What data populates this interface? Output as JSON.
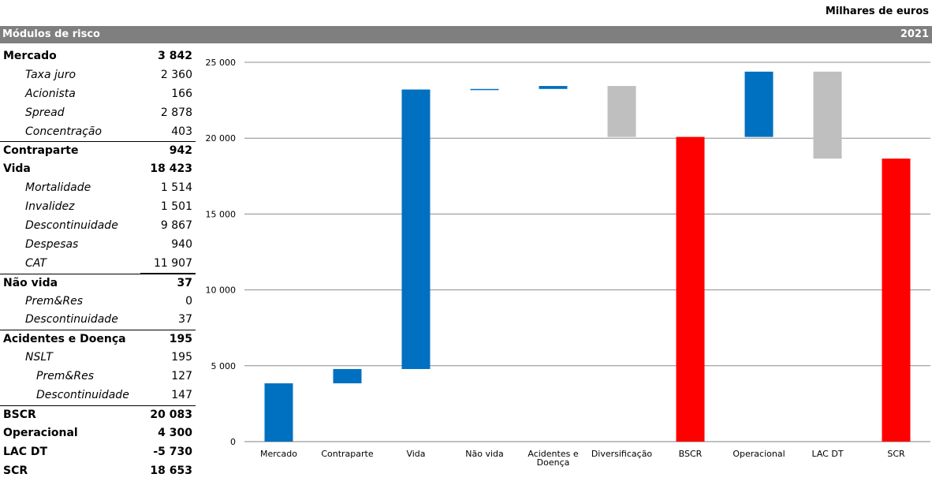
{
  "header": {
    "unit": "Milhares de euros",
    "left": "Módulos de risco",
    "year": "2021"
  },
  "table": [
    {
      "label": "Mercado",
      "value": "3 842",
      "level": 0
    },
    {
      "label": "Taxa juro",
      "value": "2 360",
      "level": 1
    },
    {
      "label": "Acionista",
      "value": "166",
      "level": 1
    },
    {
      "label": "Spread",
      "value": "2 878",
      "level": 1
    },
    {
      "label": "Concentração",
      "value": "403",
      "level": 1
    },
    {
      "label": "Contraparte",
      "value": "942",
      "level": 0
    },
    {
      "label": "Vida",
      "value": "18 423",
      "level": 0
    },
    {
      "label": "Mortalidade",
      "value": "1 514",
      "level": 1
    },
    {
      "label": "Invalidez",
      "value": "1 501",
      "level": 1
    },
    {
      "label": "Descontinuidade",
      "value": "9 867",
      "level": 1
    },
    {
      "label": "Despesas",
      "value": "940",
      "level": 1
    },
    {
      "label": "CAT",
      "value": "11 907",
      "level": 1
    },
    {
      "label": "Não vida",
      "value": "37",
      "level": 0
    },
    {
      "label": "Prem&Res",
      "value": "0",
      "level": 1
    },
    {
      "label": "Descontinuidade",
      "value": "37",
      "level": 1
    },
    {
      "label": "Acidentes e Doença",
      "value": "195",
      "level": 0
    },
    {
      "label": "NSLT",
      "value": "195",
      "level": 1
    },
    {
      "label": "Prem&Res",
      "value": "127",
      "level": 2
    },
    {
      "label": "Descontinuidade",
      "value": "147",
      "level": 2
    },
    {
      "label": "BSCR",
      "value": "20 083",
      "level": 0
    },
    {
      "label": "Operacional",
      "value": "4 300",
      "level": 0
    },
    {
      "label": "LAC DT",
      "value": "-5 730",
      "level": 0
    },
    {
      "label": "SCR",
      "value": "18 653",
      "level": 0
    }
  ],
  "chart_data": {
    "type": "bar",
    "subtype": "waterfall",
    "categories": [
      "Mercado",
      "Contraparte",
      "Vida",
      "Não vida",
      "Acidentes e Doença",
      "Diversificação",
      "BSCR",
      "Operacional",
      "LAC DT",
      "SCR"
    ],
    "category_lines": [
      [
        "Mercado"
      ],
      [
        "Contraparte"
      ],
      [
        "Vida"
      ],
      [
        "Não vida"
      ],
      [
        "Acidentes e",
        "Doença"
      ],
      [
        "Diversificação"
      ],
      [
        "BSCR"
      ],
      [
        "Operacional"
      ],
      [
        "LAC DT"
      ],
      [
        "SCR"
      ]
    ],
    "bars": [
      {
        "start": 0,
        "end": 3842,
        "color": "#0070c0"
      },
      {
        "start": 3842,
        "end": 4784,
        "color": "#0070c0"
      },
      {
        "start": 4784,
        "end": 23207,
        "color": "#0070c0"
      },
      {
        "start": 23207,
        "end": 23244,
        "color": "#0070c0"
      },
      {
        "start": 23244,
        "end": 23439,
        "color": "#0070c0"
      },
      {
        "start": 20083,
        "end": 23439,
        "color": "#bfbfbf"
      },
      {
        "start": 0,
        "end": 20083,
        "color": "#ff0000"
      },
      {
        "start": 20083,
        "end": 24383,
        "color": "#0070c0"
      },
      {
        "start": 18653,
        "end": 24383,
        "color": "#bfbfbf"
      },
      {
        "start": 0,
        "end": 18653,
        "color": "#ff0000"
      }
    ],
    "ylim": [
      0,
      25000
    ],
    "yticks": [
      0,
      5000,
      10000,
      15000,
      20000,
      25000
    ],
    "ytick_labels": [
      "0",
      "5 000",
      "10 000",
      "15 000",
      "20 000",
      "25 000"
    ],
    "grid": true
  }
}
